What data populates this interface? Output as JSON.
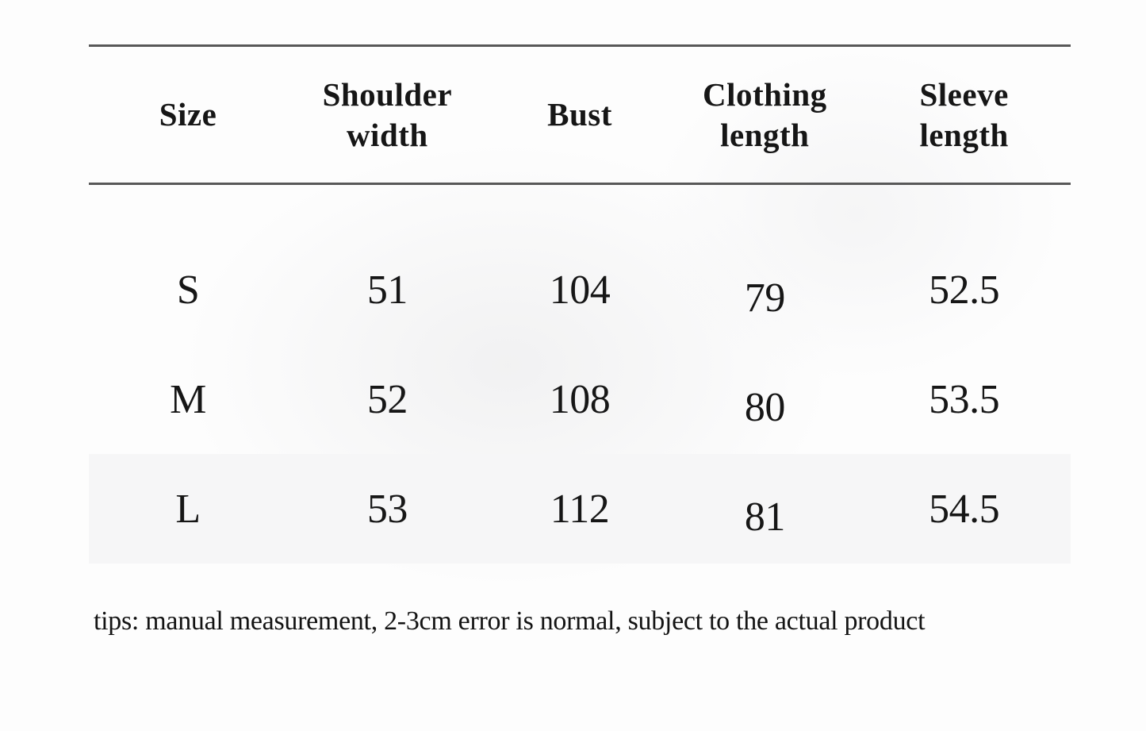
{
  "page": {
    "background_color": "#fdfdfd",
    "text_color": "#161616",
    "rule_color": "#585858",
    "highlight_row_color": "#f6f6f7"
  },
  "size_chart": {
    "columns": [
      {
        "label": "Size"
      },
      {
        "label": "Shoulder width"
      },
      {
        "label": "Bust"
      },
      {
        "label": "Clothing length"
      },
      {
        "label": "Sleeve length"
      }
    ],
    "rows": [
      {
        "size": "S",
        "shoulder_width": "51",
        "bust": "104",
        "clothing_length": "79",
        "sleeve_length": "52.5"
      },
      {
        "size": "M",
        "shoulder_width": "52",
        "bust": "108",
        "clothing_length": "80",
        "sleeve_length": "53.5"
      },
      {
        "size": "L",
        "shoulder_width": "53",
        "bust": "112",
        "clothing_length": "81",
        "sleeve_length": "54.5"
      }
    ]
  },
  "footnote": {
    "text": "tips: manual measurement, 2-3cm error is normal, subject to the actual product"
  },
  "chart_data": {
    "type": "table",
    "columns": [
      "Size",
      "Shoulder width",
      "Bust",
      "Clothing length",
      "Sleeve length"
    ],
    "rows": [
      [
        "S",
        51,
        104,
        79,
        52.5
      ],
      [
        "M",
        52,
        108,
        80,
        53.5
      ],
      [
        "L",
        53,
        112,
        81,
        54.5
      ]
    ],
    "units": "cm",
    "footnote": "tips: manual measurement, 2-3cm error is normal, subject to the actual product"
  }
}
